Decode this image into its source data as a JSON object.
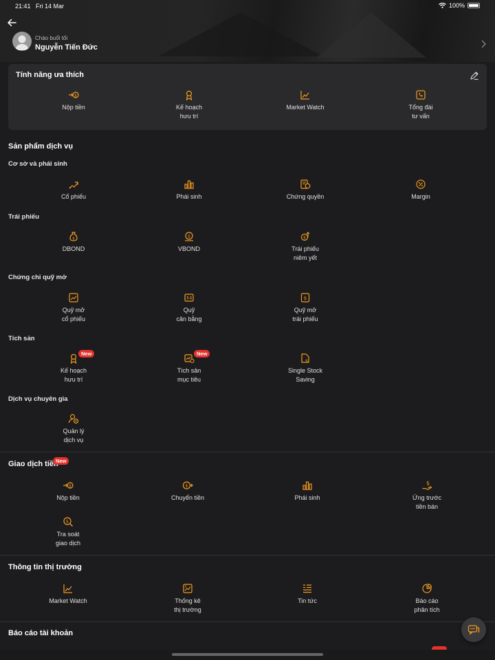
{
  "status": {
    "time": "21:41",
    "date": "Fri 14 Mar",
    "battery": "100%"
  },
  "user": {
    "greeting": "Chào buổi tối",
    "name": "Nguyễn Tiến Đức"
  },
  "favorites": {
    "title": "Tính năng ưa thích",
    "items": [
      {
        "label": "Nộp tiền",
        "icon": "deposit-icon"
      },
      {
        "label": "Kế hoạch\nhưu trí",
        "icon": "retirement-icon"
      },
      {
        "label": "Market Watch",
        "icon": "market-watch-icon"
      },
      {
        "label": "Tổng đài\ntư vấn",
        "icon": "hotline-icon"
      }
    ]
  },
  "products": {
    "title": "Sản phẩm dịch vụ",
    "groups": [
      {
        "title": "Cơ sở và phái sinh",
        "items": [
          {
            "label": "Cổ phiếu",
            "icon": "stock-icon"
          },
          {
            "label": "Phái sinh",
            "icon": "derivative-icon"
          },
          {
            "label": "Chứng quyền",
            "icon": "warrant-icon"
          },
          {
            "label": "Margin",
            "icon": "margin-icon"
          }
        ]
      },
      {
        "title": "Trái phiếu",
        "items": [
          {
            "label": "DBOND",
            "icon": "dbond-icon"
          },
          {
            "label": "VBOND",
            "icon": "vbond-icon"
          },
          {
            "label": "Trái phiếu\nniêm yết",
            "icon": "listed-bond-icon"
          }
        ]
      },
      {
        "title": "Chứng chỉ quỹ mở",
        "items": [
          {
            "label": "Quỹ mở\ncổ phiếu",
            "icon": "equity-fund-icon"
          },
          {
            "label": "Quỹ\ncân bằng",
            "icon": "balanced-fund-icon"
          },
          {
            "label": "Quỹ mở\ntrái phiếu",
            "icon": "bond-fund-icon"
          }
        ]
      },
      {
        "title": "Tích sản",
        "items": [
          {
            "label": "Kế hoạch\nhưu trí",
            "icon": "retirement-icon",
            "badge": "New"
          },
          {
            "label": "Tích sản\nmục tiêu",
            "icon": "goal-saving-icon",
            "badge": "New"
          },
          {
            "label": "Single Stock\nSaving",
            "icon": "single-stock-icon"
          }
        ]
      },
      {
        "title": "Dịch vụ chuyên gia",
        "items": [
          {
            "label": "Quản lý\ndịch vụ",
            "icon": "service-manage-icon"
          }
        ]
      }
    ]
  },
  "transactions": {
    "title": "Giao dịch tiền",
    "badge": "New",
    "items": [
      {
        "label": "Nộp tiền",
        "icon": "deposit-icon"
      },
      {
        "label": "Chuyển tiền",
        "icon": "transfer-icon"
      },
      {
        "label": "Phái sinh",
        "icon": "derivative-icon"
      },
      {
        "label": "Ứng trước\ntiền bán",
        "icon": "advance-icon"
      },
      {
        "label": "Tra soát\ngiao dịch",
        "icon": "lookup-icon"
      }
    ]
  },
  "market": {
    "title": "Thông tin thị trường",
    "items": [
      {
        "label": "Market Watch",
        "icon": "market-watch-icon"
      },
      {
        "label": "Thống kê\nthị trường",
        "icon": "stats-icon"
      },
      {
        "label": "Tin tức",
        "icon": "news-icon"
      },
      {
        "label": "Báo cáo\nphân tích",
        "icon": "report-icon"
      }
    ]
  },
  "account_report": {
    "title": "Báo cáo tài khoản"
  },
  "colors": {
    "accent": "#f29a1f",
    "badge": "#e5322c",
    "background": "#1c1c1e",
    "card": "#2a2a2c"
  }
}
